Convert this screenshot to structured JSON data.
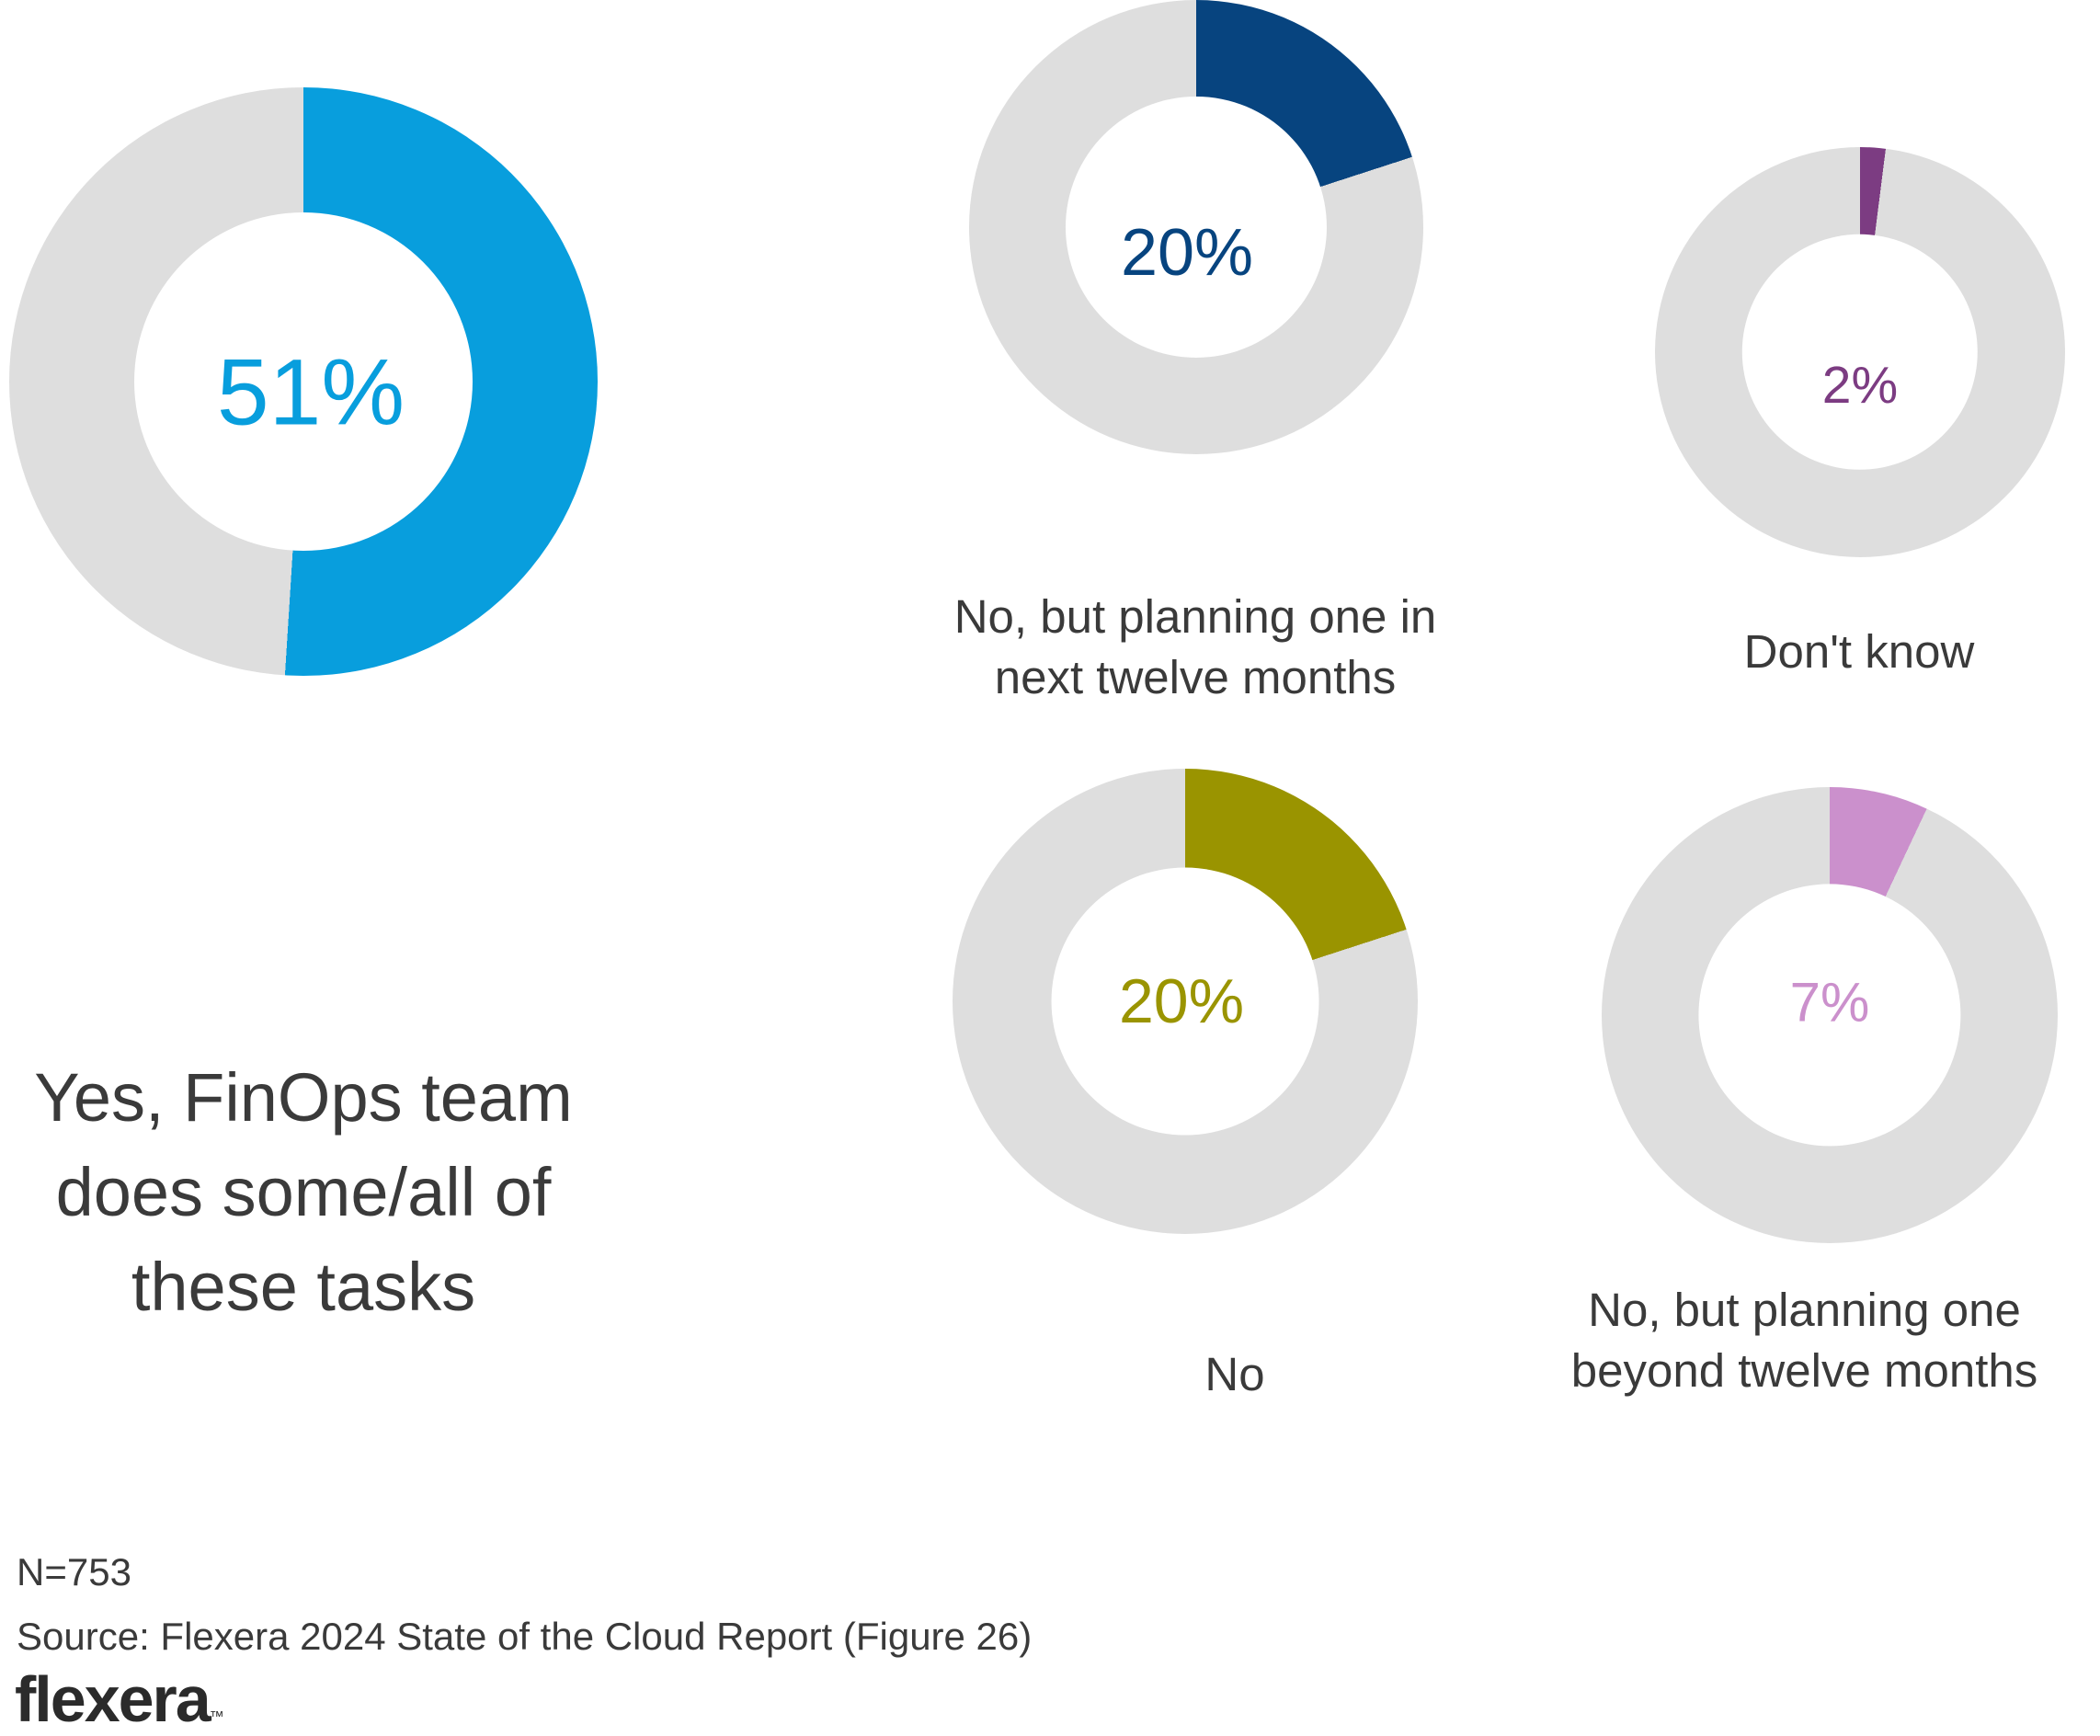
{
  "chart_data": {
    "type": "pie",
    "variant": "donut-multiples",
    "title": "",
    "units": "percent of respondents",
    "track_color": "#dedede",
    "donuts": [
      {
        "id": "yes",
        "label": "Yes, FinOps team does some/all of these tasks",
        "value": 51,
        "value_label": "51%",
        "color": "#089edd"
      },
      {
        "id": "plan12",
        "label": "No, but planning one in next twelve months",
        "value": 20,
        "value_label": "20%",
        "color": "#07447f"
      },
      {
        "id": "dontknow",
        "label": "Don't know",
        "value": 2,
        "value_label": "2%",
        "color": "#7c3c82"
      },
      {
        "id": "no",
        "label": "No",
        "value": 20,
        "value_label": "20%",
        "color": "#9a9400"
      },
      {
        "id": "beyond12",
        "label": "No, but planning one beyond twelve months",
        "value": 7,
        "value_label": "7%",
        "color": "#cb90cc"
      }
    ],
    "layout_hints": {
      "slice_start": "12-o-clock, clockwise",
      "remainder_color": "#dedede",
      "value_label_position": "center of donut hole"
    }
  },
  "footer": {
    "n": "N=753",
    "source": "Source: Flexera 2024 State of the Cloud Report (Figure 26)",
    "logo_text": "flexera",
    "logo_tm": "™"
  },
  "colors": {
    "background": "#ffffff",
    "track": "#dedede",
    "text": "#3a3a3a",
    "logo": "#2b2b2b"
  }
}
